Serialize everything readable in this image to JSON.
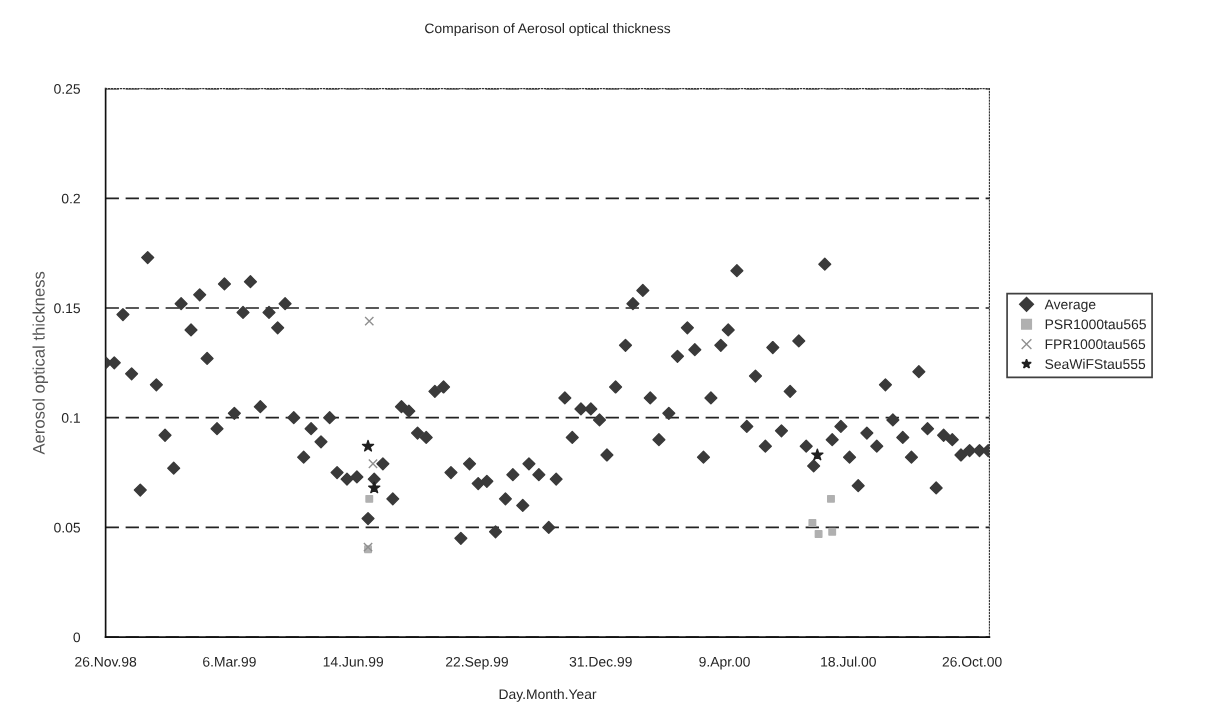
{
  "chart_data": {
    "type": "scatter",
    "title": "Comparison of Aerosol optical thickness",
    "xlabel": "Day.Month.Year",
    "ylabel": "Aerosol optical thickness",
    "series": [
      {
        "name": "Average",
        "color": "#3a3a3a",
        "marker": "diamond",
        "x": [
          "1998-11-26",
          "1998-12-03",
          "1998-12-10",
          "1998-12-17",
          "1998-12-24",
          "1998-12-30",
          "1999-01-06",
          "1999-01-13",
          "1999-01-20",
          "1999-01-26",
          "1999-02-03",
          "1999-02-10",
          "1999-02-16",
          "1999-02-24",
          "1999-03-02",
          "1999-03-10",
          "1999-03-17",
          "1999-03-23",
          "1999-03-31",
          "1999-04-07",
          "1999-04-14",
          "1999-04-20",
          "1999-04-27",
          "1999-05-05",
          "1999-05-11",
          "1999-05-19",
          "1999-05-26",
          "1999-06-01",
          "1999-06-09",
          "1999-06-17",
          "1999-06-26",
          "1999-07-01",
          "1999-07-08",
          "1999-07-16",
          "1999-07-23",
          "1999-07-29",
          "1999-08-05",
          "1999-08-12",
          "1999-08-19",
          "1999-08-26",
          "1999-09-01",
          "1999-09-09",
          "1999-09-16",
          "1999-09-23",
          "1999-09-30",
          "1999-10-07",
          "1999-10-15",
          "1999-10-21",
          "1999-10-29",
          "1999-11-03",
          "1999-11-11",
          "1999-11-19",
          "1999-11-25",
          "1999-12-02",
          "1999-12-08",
          "1999-12-15",
          "1999-12-23",
          "1999-12-30",
          "2000-01-05",
          "2000-01-12",
          "2000-01-20",
          "2000-01-26",
          "2000-02-03",
          "2000-02-09",
          "2000-02-16",
          "2000-02-24",
          "2000-03-02",
          "2000-03-10",
          "2000-03-16",
          "2000-03-23",
          "2000-03-29",
          "2000-04-06",
          "2000-04-12",
          "2000-04-19",
          "2000-04-27",
          "2000-05-04",
          "2000-05-12",
          "2000-05-18",
          "2000-05-25",
          "2000-06-01",
          "2000-06-08",
          "2000-06-14",
          "2000-06-20",
          "2000-06-29",
          "2000-07-05",
          "2000-07-12",
          "2000-07-19",
          "2000-07-26",
          "2000-08-02",
          "2000-08-10",
          "2000-08-17",
          "2000-08-23",
          "2000-08-31",
          "2000-09-07",
          "2000-09-13",
          "2000-09-20",
          "2000-09-27",
          "2000-10-03",
          "2000-10-10",
          "2000-10-17",
          "2000-10-24",
          "2000-11-01",
          "2000-11-08"
        ],
        "values": [
          0.125,
          0.125,
          0.147,
          0.12,
          0.067,
          0.173,
          0.115,
          0.092,
          0.077,
          0.152,
          0.14,
          0.156,
          0.127,
          0.095,
          0.161,
          0.102,
          0.148,
          0.162,
          0.105,
          0.148,
          0.141,
          0.152,
          0.1,
          0.082,
          0.095,
          0.089,
          0.1,
          0.075,
          0.072,
          0.073,
          0.054,
          0.072,
          0.079,
          0.063,
          0.105,
          0.103,
          0.093,
          0.091,
          0.112,
          0.114,
          0.075,
          0.045,
          0.079,
          0.07,
          0.071,
          0.048,
          0.063,
          0.074,
          0.06,
          0.079,
          0.074,
          0.05,
          0.072,
          0.109,
          0.091,
          0.104,
          0.104,
          0.099,
          0.083,
          0.114,
          0.133,
          0.152,
          0.158,
          0.109,
          0.09,
          0.102,
          0.128,
          0.141,
          0.131,
          0.082,
          0.109,
          0.133,
          0.14,
          0.167,
          0.096,
          0.119,
          0.087,
          0.132,
          0.094,
          0.112,
          0.135,
          0.087,
          0.078,
          0.17,
          0.09,
          0.096,
          0.082,
          0.069,
          0.093,
          0.087,
          0.115,
          0.099,
          0.091,
          0.082,
          0.121,
          0.095,
          0.068,
          0.092,
          0.09,
          0.083,
          0.085,
          0.085,
          0.085
        ]
      },
      {
        "name": "PSR1000tau565",
        "color": "#b0b0b0",
        "marker": "square",
        "x": [
          "1999-06-26",
          "1999-06-27",
          "2000-06-19",
          "2000-06-24",
          "2000-07-04",
          "2000-07-05"
        ],
        "values": [
          0.04,
          0.063,
          0.052,
          0.047,
          0.063,
          0.048
        ]
      },
      {
        "name": "FPR1000tau565",
        "color": "#909090",
        "marker": "cross",
        "x": [
          "1999-06-26",
          "1999-06-27",
          "1999-06-30"
        ],
        "values": [
          0.041,
          0.144,
          0.079
        ]
      },
      {
        "name": "SeaWiFStau555",
        "color": "#202020",
        "marker": "star",
        "x": [
          "1999-06-26",
          "1999-07-01",
          "2000-06-23"
        ],
        "values": [
          0.087,
          0.068,
          0.083
        ]
      }
    ],
    "xlim": [
      "1998-11-26",
      "2000-11-09"
    ],
    "xticks": [
      {
        "value": "1998-11-26",
        "label": "26.Nov.98"
      },
      {
        "value": "1999-03-06",
        "label": "6.Mar.99"
      },
      {
        "value": "1999-06-14",
        "label": "14.Jun.99"
      },
      {
        "value": "1999-09-22",
        "label": "22.Sep.99"
      },
      {
        "value": "1999-12-31",
        "label": "31.Dec.99"
      },
      {
        "value": "2000-04-09",
        "label": "9.Apr.00"
      },
      {
        "value": "2000-07-18",
        "label": "18.Jul.00"
      },
      {
        "value": "2000-10-26",
        "label": "26.Oct.00"
      }
    ],
    "ylim": [
      0,
      0.25
    ],
    "yticks": [
      0,
      0.05,
      0.1,
      0.15,
      0.2,
      0.25
    ],
    "grid": "y",
    "legend": "right"
  }
}
